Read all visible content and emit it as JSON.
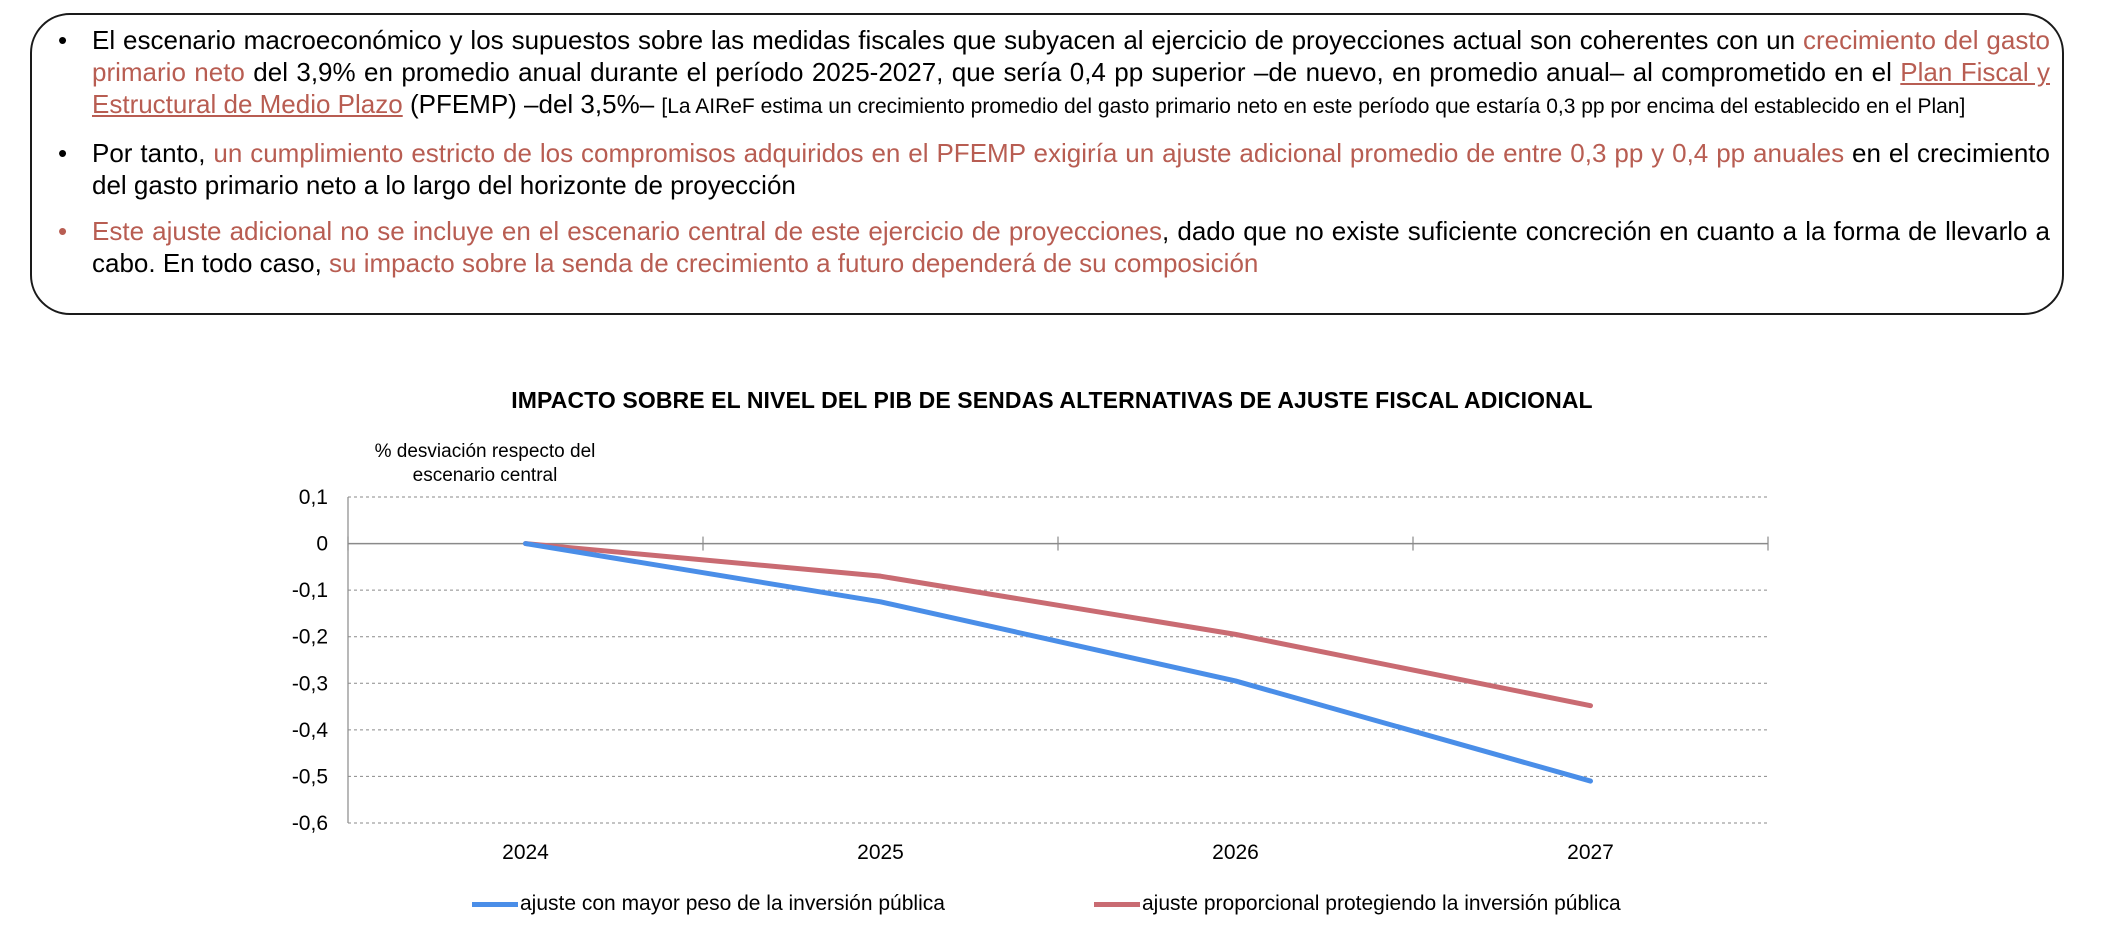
{
  "text_box": {
    "bullet1": {
      "a": "El escenario macroeconómico y los supuestos sobre las medidas fiscales que subyacen al ejercicio de proyecciones actual son coherentes con un ",
      "b": "crecimiento del gasto primario neto",
      "c": " del 3,9% en promedio anual durante el período 2025-2027, que sería 0,4 pp superior –de nuevo, en promedio anual– al comprometido en el ",
      "d": "Plan Fiscal y Estructural de Medio Plazo",
      "e": " (PFEMP) –del 3,5%– ",
      "f": "[La AIReF estima un crecimiento promedio del gasto primario neto en este período que estaría 0,3 pp por encima del establecido en el Plan]"
    },
    "bullet2": {
      "a": "Por tanto, ",
      "b": "un cumplimiento estricto de los compromisos adquiridos en el PFEMP exigiría un ajuste adicional promedio de entre 0,3 pp y 0,4 pp anuales",
      "c": " en el crecimiento del gasto primario neto a lo largo del horizonte de proyección"
    },
    "bullet3": {
      "a": "Este ajuste adicional no se incluye en el escenario central de este ejercicio de proyecciones",
      "b": ", dado que no existe suficiente concreción en cuanto a la forma de llevarlo a cabo. En todo caso, ",
      "c": "su impacto sobre la senda de crecimiento a futuro dependerá de su composición"
    },
    "bullet_glyph": "•"
  },
  "colors": {
    "highlight": "#b85d52",
    "series_investment": "#4a8ee8",
    "series_proportional": "#c96b72"
  },
  "chart_data": {
    "type": "line",
    "title": "IMPACTO SOBRE EL NIVEL DEL PIB DE SENDAS ALTERNATIVAS DE AJUSTE FISCAL ADICIONAL",
    "ylabel_line1": "% desviación respecto del",
    "ylabel_line2": "escenario central",
    "xlabel": "",
    "categories": [
      "2024",
      "2025",
      "2026",
      "2027"
    ],
    "ylim": [
      -0.6,
      0.1
    ],
    "yticks": [
      0.1,
      0,
      -0.1,
      -0.2,
      -0.3,
      -0.4,
      -0.5,
      -0.6
    ],
    "ytick_labels": [
      "0,1",
      "0",
      "-0,1",
      "-0,2",
      "-0,3",
      "-0,4",
      "-0,5",
      "-0,6"
    ],
    "grid": true,
    "series": [
      {
        "name": "ajuste con mayor peso de la inversión pública",
        "values": [
          0,
          -0.125,
          -0.295,
          -0.51
        ],
        "color": "#4a8ee8"
      },
      {
        "name": "ajuste proporcional protegiendo la inversión pública",
        "values": [
          0,
          -0.07,
          -0.195,
          -0.348
        ],
        "color": "#c96b72"
      }
    ]
  }
}
